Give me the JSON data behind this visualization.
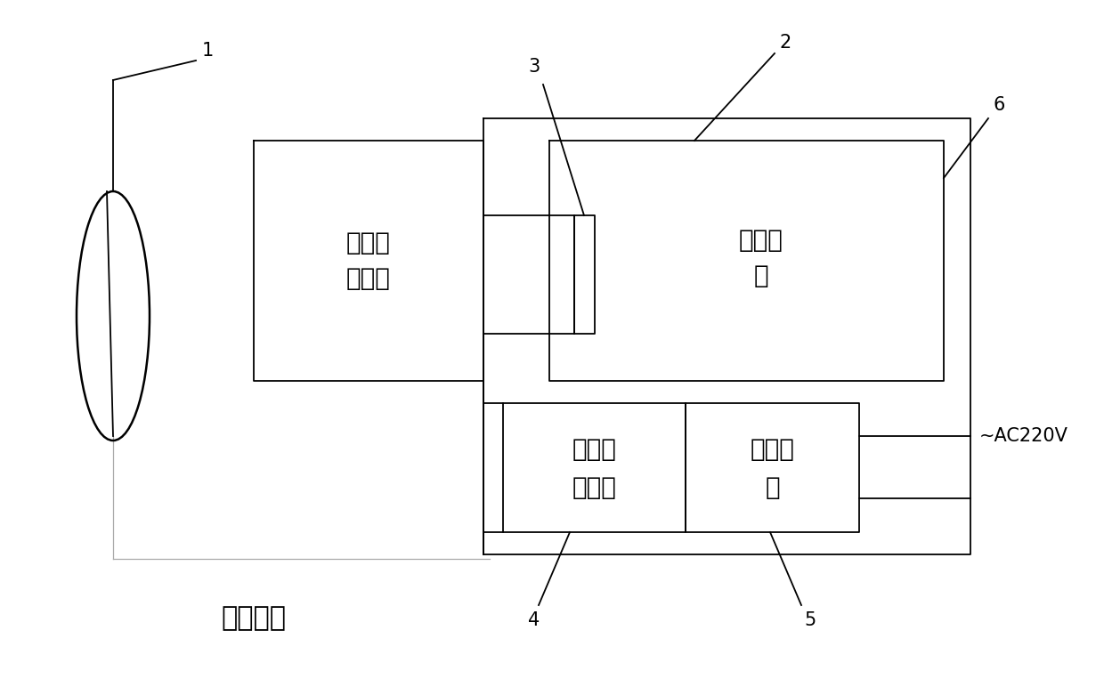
{
  "bg_color": "#ffffff",
  "line_color": "#000000",
  "text_color": "#000000",
  "label_1": "1",
  "label_2": "2",
  "label_3": "3",
  "label_4": "4",
  "label_5": "5",
  "label_6": "6",
  "label_bottom": "励磁涌流",
  "box_kaikou_line1": "开口三",
  "box_kaikou_line2": "角回路",
  "box_xiaoxie_line1": "消谐模",
  "box_xiaoxie_line2": "块",
  "box_zhenzhen_line1": "谐振判",
  "box_zhenzhen_line2": "断模块",
  "box_dianyuan_line1": "电源模",
  "box_dianyuan_line2": "块",
  "label_ac": "~AC220V",
  "figsize": [
    12.4,
    7.63
  ],
  "dpi": 100
}
